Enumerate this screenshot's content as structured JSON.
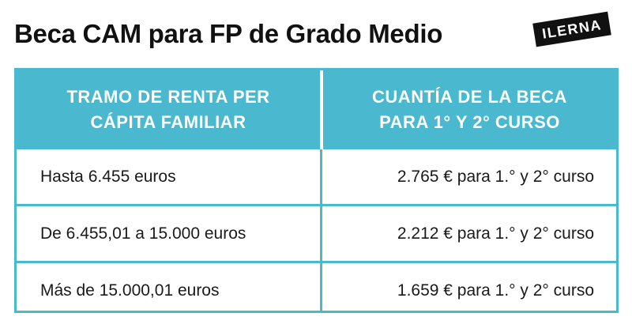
{
  "title": "Beca CAM para FP de Grado Medio",
  "logo": {
    "text": "ILERNA"
  },
  "colors": {
    "accent": "#4ab8cf",
    "text": "#111111",
    "header_text": "#ffffff"
  },
  "table": {
    "headers": [
      [
        "TRAMO DE RENTA PER",
        "CÁPITA FAMILIAR"
      ],
      [
        "CUANTÍA DE LA BECA",
        "PARA 1° Y 2° CURSO"
      ]
    ],
    "rows": [
      [
        "Hasta 6.455 euros",
        "2.765 € para 1.° y 2° curso"
      ],
      [
        "De 6.455,01 a 15.000 euros",
        "2.212 € para 1.° y 2° curso"
      ],
      [
        "Más de 15.000,01 euros",
        "1.659 € para 1.° y 2° curso"
      ]
    ]
  }
}
